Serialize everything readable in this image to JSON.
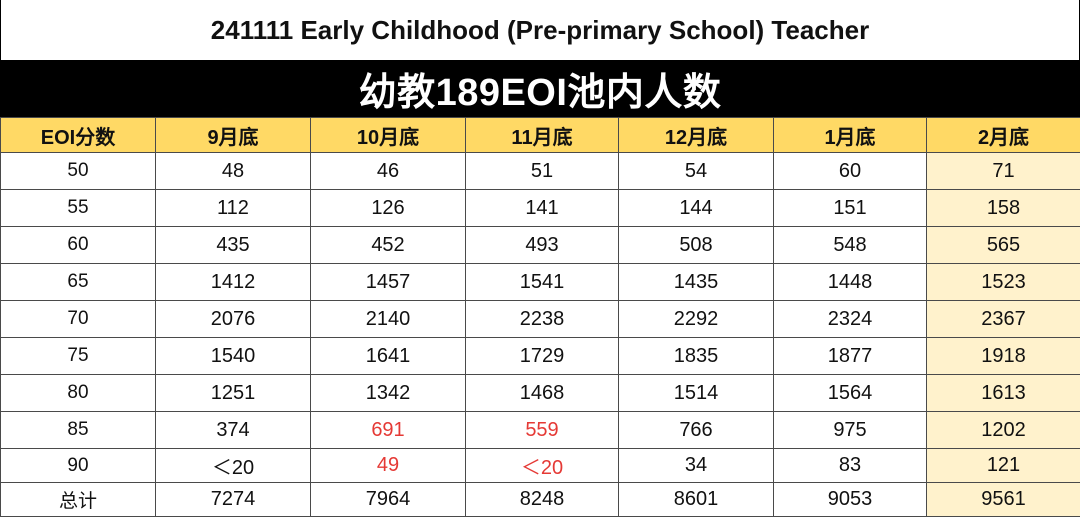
{
  "title": "241111 Early Childhood (Pre-primary School) Teacher",
  "banner": "幼教189EOI池内人数",
  "colors": {
    "header_bg": "#ffd965",
    "highlight_col_bg": "#fff2cc",
    "red_text": "#e53935",
    "banner_bg": "#000000"
  },
  "table": {
    "headers": [
      "EOI分数",
      "9月底",
      "10月底",
      "11月底",
      "12月底",
      "1月底",
      "2月底"
    ],
    "rows": [
      [
        "50",
        "48",
        "46",
        "51",
        "54",
        "60",
        "71"
      ],
      [
        "55",
        "112",
        "126",
        "141",
        "144",
        "151",
        "158"
      ],
      [
        "60",
        "435",
        "452",
        "493",
        "508",
        "548",
        "565"
      ],
      [
        "65",
        "1412",
        "1457",
        "1541",
        "1435",
        "1448",
        "1523"
      ],
      [
        "70",
        "2076",
        "2140",
        "2238",
        "2292",
        "2324",
        "2367"
      ],
      [
        "75",
        "1540",
        "1641",
        "1729",
        "1835",
        "1877",
        "1918"
      ],
      [
        "80",
        "1251",
        "1342",
        "1468",
        "1514",
        "1564",
        "1613"
      ],
      [
        "85",
        "374",
        "691",
        "559",
        "766",
        "975",
        "1202"
      ],
      [
        "90",
        "＜20",
        "49",
        "＜20",
        "34",
        "83",
        "121"
      ],
      [
        "总计",
        "7274",
        "7964",
        "8248",
        "8601",
        "9053",
        "9561"
      ]
    ],
    "red_cells": [
      [
        7,
        2
      ],
      [
        7,
        3
      ],
      [
        8,
        2
      ],
      [
        8,
        3
      ]
    ],
    "highlight_column": 6
  }
}
